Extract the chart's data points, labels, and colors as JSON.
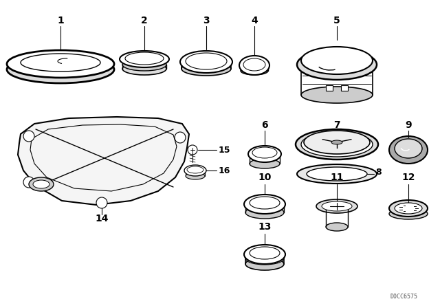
{
  "background_color": "#ffffff",
  "text_color": "#000000",
  "line_color": "#000000",
  "diagram_code": "D0CC6575",
  "figsize": [
    6.4,
    4.48
  ],
  "dpi": 100
}
